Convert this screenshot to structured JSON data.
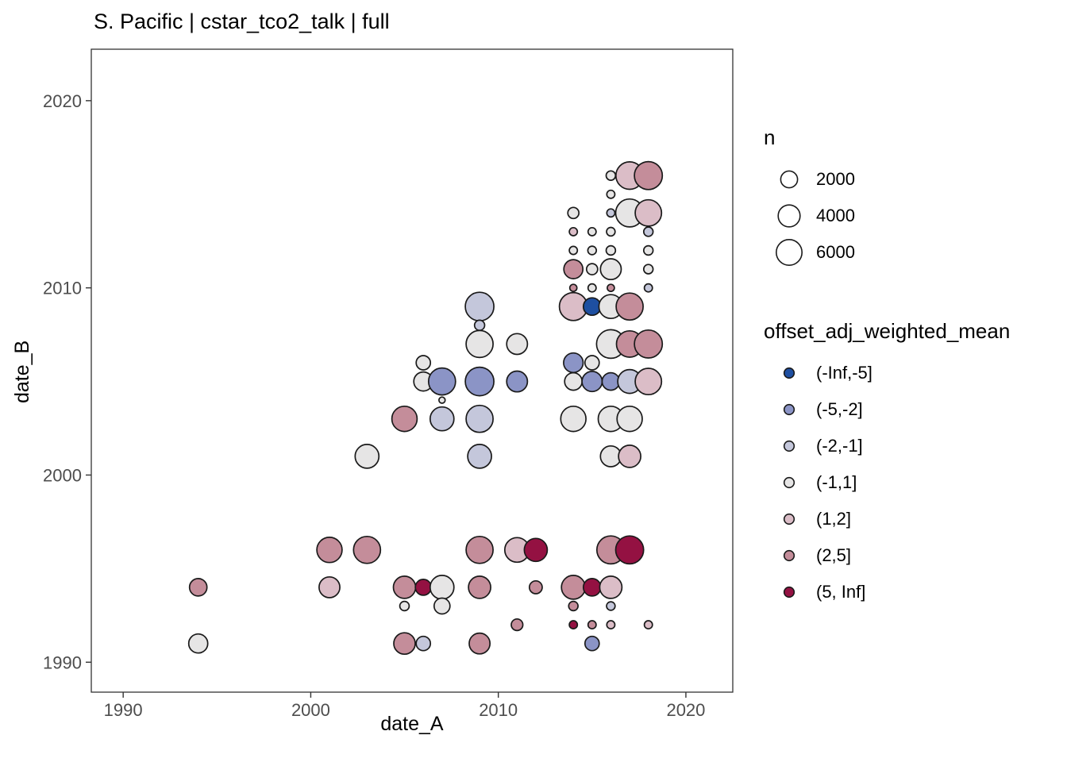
{
  "title": "S. Pacific | cstar_tco2_talk | full",
  "chart_data": {
    "type": "scatter",
    "xlabel": "date_A",
    "ylabel": "date_B",
    "x_ticks": [
      1990,
      2000,
      2010,
      2020
    ],
    "y_ticks": [
      1990,
      2000,
      2010,
      2020
    ],
    "xlim": [
      1988.3,
      2022.5
    ],
    "ylim": [
      1988.4,
      2022.75
    ],
    "grid": false,
    "legend_position": "right",
    "size_scale": {
      "title": "n",
      "breaks": [
        2000,
        4000,
        6000
      ]
    },
    "color_scale": {
      "title": "offset_adj_weighted_mean",
      "bins": [
        {
          "label": "(-Inf,-5]",
          "color": "#1e4fa1"
        },
        {
          "label": "(-5,-2]",
          "color": "#8b94c6"
        },
        {
          "label": "(-2,-1]",
          "color": "#c4c7db"
        },
        {
          "label": "(-1,1]",
          "color": "#e6e5e5"
        },
        {
          "label": "(1,2]",
          "color": "#dbbdc7"
        },
        {
          "label": "(2,5]",
          "color": "#c48d9a"
        },
        {
          "label": "(5, Inf]",
          "color": "#941142"
        }
      ]
    },
    "points": [
      {
        "x": 1994,
        "y": 1994,
        "bin": "(2,5]",
        "n": 2200
      },
      {
        "x": 1994,
        "y": 1991,
        "bin": "(-1,1]",
        "n": 2800
      },
      {
        "x": 2001,
        "y": 1996,
        "bin": "(2,5]",
        "n": 5800
      },
      {
        "x": 2001,
        "y": 1994,
        "bin": "(1,2]",
        "n": 3500
      },
      {
        "x": 2003,
        "y": 2001,
        "bin": "(-1,1]",
        "n": 5000
      },
      {
        "x": 2003,
        "y": 1996,
        "bin": "(2,5]",
        "n": 6800
      },
      {
        "x": 2005,
        "y": 2003,
        "bin": "(2,5]",
        "n": 5800
      },
      {
        "x": 2005,
        "y": 1994,
        "bin": "(2,5]",
        "n": 4200
      },
      {
        "x": 2005,
        "y": 1993,
        "bin": "(-1,1]",
        "n": 300
      },
      {
        "x": 2005,
        "y": 1991,
        "bin": "(2,5]",
        "n": 3800
      },
      {
        "x": 2006,
        "y": 2006,
        "bin": "(-1,1]",
        "n": 1250
      },
      {
        "x": 2006,
        "y": 2005,
        "bin": "(-1,1]",
        "n": 2800
      },
      {
        "x": 2006,
        "y": 1994,
        "bin": "(5, Inf]",
        "n": 1700
      },
      {
        "x": 2006,
        "y": 1991,
        "bin": "(-2,-1]",
        "n": 1250
      },
      {
        "x": 2007,
        "y": 2005,
        "bin": "(-5,-2]",
        "n": 6800
      },
      {
        "x": 2007,
        "y": 2004,
        "bin": "(-1,1]",
        "n": 30
      },
      {
        "x": 2007,
        "y": 2003,
        "bin": "(-2,-1]",
        "n": 5000
      },
      {
        "x": 2007,
        "y": 1994,
        "bin": "(-1,1]",
        "n": 5000
      },
      {
        "x": 2007,
        "y": 1993,
        "bin": "(-1,1]",
        "n": 1700
      },
      {
        "x": 2009,
        "y": 2009,
        "bin": "(-2,-1]",
        "n": 7800
      },
      {
        "x": 2009,
        "y": 2008,
        "bin": "(-2,-1]",
        "n": 400
      },
      {
        "x": 2009,
        "y": 2007,
        "bin": "(-1,1]",
        "n": 6800
      },
      {
        "x": 2009,
        "y": 2005,
        "bin": "(-5,-2]",
        "n": 7800
      },
      {
        "x": 2009,
        "y": 2003,
        "bin": "(-2,-1]",
        "n": 6800
      },
      {
        "x": 2009,
        "y": 2001,
        "bin": "(-2,-1]",
        "n": 5000
      },
      {
        "x": 2009,
        "y": 1996,
        "bin": "(2,5]",
        "n": 6800
      },
      {
        "x": 2009,
        "y": 1994,
        "bin": "(2,5]",
        "n": 4200
      },
      {
        "x": 2009,
        "y": 1991,
        "bin": "(2,5]",
        "n": 3500
      },
      {
        "x": 2011,
        "y": 2007,
        "bin": "(-1,1]",
        "n": 3500
      },
      {
        "x": 2011,
        "y": 2005,
        "bin": "(-5,-2]",
        "n": 3500
      },
      {
        "x": 2011,
        "y": 1996,
        "bin": "(1,2]",
        "n": 5400
      },
      {
        "x": 2011,
        "y": 1992,
        "bin": "(2,5]",
        "n": 650
      },
      {
        "x": 2012,
        "y": 1996,
        "bin": "(5, Inf]",
        "n": 4600
      },
      {
        "x": 2012,
        "y": 1994,
        "bin": "(2,5]",
        "n": 900
      },
      {
        "x": 2014,
        "y": 2014,
        "bin": "(-1,1]",
        "n": 550
      },
      {
        "x": 2014,
        "y": 2013,
        "bin": "(1,2]",
        "n": 150
      },
      {
        "x": 2014,
        "y": 2012,
        "bin": "(-1,1]",
        "n": 150
      },
      {
        "x": 2014,
        "y": 2011,
        "bin": "(2,5]",
        "n": 2800
      },
      {
        "x": 2014,
        "y": 2010,
        "bin": "(2,5]",
        "n": 80
      },
      {
        "x": 2014,
        "y": 2009,
        "bin": "(1,2]",
        "n": 7400
      },
      {
        "x": 2014,
        "y": 2006,
        "bin": "(-5,-2]",
        "n": 3000
      },
      {
        "x": 2014,
        "y": 2005,
        "bin": "(-1,1]",
        "n": 2200
      },
      {
        "x": 2014,
        "y": 2003,
        "bin": "(-1,1]",
        "n": 5800
      },
      {
        "x": 2014,
        "y": 1994,
        "bin": "(2,5]",
        "n": 5000
      },
      {
        "x": 2014,
        "y": 1993,
        "bin": "(2,5]",
        "n": 300
      },
      {
        "x": 2014,
        "y": 1992,
        "bin": "(5, Inf]",
        "n": 150
      },
      {
        "x": 2015,
        "y": 2013,
        "bin": "(-1,1]",
        "n": 150
      },
      {
        "x": 2015,
        "y": 2012,
        "bin": "(-1,1]",
        "n": 200
      },
      {
        "x": 2015,
        "y": 2011,
        "bin": "(-1,1]",
        "n": 550
      },
      {
        "x": 2015,
        "y": 2010,
        "bin": "(-1,1]",
        "n": 150
      },
      {
        "x": 2015,
        "y": 2009,
        "bin": "(-Inf,-5]",
        "n": 2200
      },
      {
        "x": 2015,
        "y": 2006,
        "bin": "(-1,1]",
        "n": 1250
      },
      {
        "x": 2015,
        "y": 2005,
        "bin": "(-5,-2]",
        "n": 3250
      },
      {
        "x": 2015,
        "y": 1994,
        "bin": "(5, Inf]",
        "n": 2200
      },
      {
        "x": 2015,
        "y": 1992,
        "bin": "(2,5]",
        "n": 150
      },
      {
        "x": 2015,
        "y": 1991,
        "bin": "(-5,-2]",
        "n": 1250
      },
      {
        "x": 2016,
        "y": 2016,
        "bin": "(-1,1]",
        "n": 300
      },
      {
        "x": 2016,
        "y": 2015,
        "bin": "(-1,1]",
        "n": 150
      },
      {
        "x": 2016,
        "y": 2014,
        "bin": "(-2,-1]",
        "n": 150
      },
      {
        "x": 2016,
        "y": 2013,
        "bin": "(-1,1]",
        "n": 200
      },
      {
        "x": 2016,
        "y": 2012,
        "bin": "(-1,1]",
        "n": 300
      },
      {
        "x": 2016,
        "y": 2011,
        "bin": "(-1,1]",
        "n": 3500
      },
      {
        "x": 2016,
        "y": 2010,
        "bin": "(2,5]",
        "n": 80
      },
      {
        "x": 2016,
        "y": 2009,
        "bin": "(-1,1]",
        "n": 5000
      },
      {
        "x": 2016,
        "y": 2007,
        "bin": "(-1,1]",
        "n": 7800
      },
      {
        "x": 2016,
        "y": 2005,
        "bin": "(-5,-2]",
        "n": 2200
      },
      {
        "x": 2016,
        "y": 2003,
        "bin": "(-1,1]",
        "n": 5800
      },
      {
        "x": 2016,
        "y": 2001,
        "bin": "(-1,1]",
        "n": 3500
      },
      {
        "x": 2016,
        "y": 1996,
        "bin": "(2,5]",
        "n": 7400
      },
      {
        "x": 2016,
        "y": 1994,
        "bin": "(1,2]",
        "n": 4200
      },
      {
        "x": 2016,
        "y": 1993,
        "bin": "(-2,-1]",
        "n": 200
      },
      {
        "x": 2016,
        "y": 1992,
        "bin": "(1,2]",
        "n": 150
      },
      {
        "x": 2017,
        "y": 2016,
        "bin": "(1,2]",
        "n": 7100
      },
      {
        "x": 2017,
        "y": 2014,
        "bin": "(-1,1]",
        "n": 7400
      },
      {
        "x": 2017,
        "y": 2009,
        "bin": "(2,5]",
        "n": 6800
      },
      {
        "x": 2017,
        "y": 2007,
        "bin": "(2,5]",
        "n": 6400
      },
      {
        "x": 2017,
        "y": 2005,
        "bin": "(-2,-1]",
        "n": 5000
      },
      {
        "x": 2017,
        "y": 2003,
        "bin": "(-1,1]",
        "n": 5800
      },
      {
        "x": 2017,
        "y": 2001,
        "bin": "(1,2]",
        "n": 4200
      },
      {
        "x": 2017,
        "y": 1996,
        "bin": "(5, Inf]",
        "n": 7400
      },
      {
        "x": 2018,
        "y": 2016,
        "bin": "(2,5]",
        "n": 7400
      },
      {
        "x": 2018,
        "y": 2014,
        "bin": "(1,2]",
        "n": 6400
      },
      {
        "x": 2018,
        "y": 2013,
        "bin": "(-2,-1]",
        "n": 300
      },
      {
        "x": 2018,
        "y": 2012,
        "bin": "(-1,1]",
        "n": 300
      },
      {
        "x": 2018,
        "y": 2011,
        "bin": "(-1,1]",
        "n": 300
      },
      {
        "x": 2018,
        "y": 2010,
        "bin": "(-2,-1]",
        "n": 150
      },
      {
        "x": 2018,
        "y": 2007,
        "bin": "(2,5]",
        "n": 7400
      },
      {
        "x": 2018,
        "y": 2005,
        "bin": "(1,2]",
        "n": 6400
      },
      {
        "x": 2018,
        "y": 1992,
        "bin": "(1,2]",
        "n": 150
      }
    ]
  }
}
